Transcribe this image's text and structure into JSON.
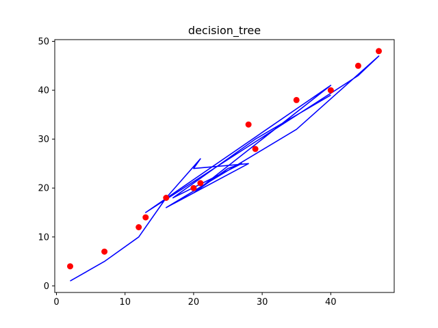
{
  "chart_data": {
    "type": "scatter",
    "title": "decision_tree",
    "xlabel": "",
    "ylabel": "",
    "xlim": [
      -0.25,
      49.25
    ],
    "ylim": [
      -1.35,
      50.35
    ],
    "xticks": [
      0,
      10,
      20,
      30,
      40
    ],
    "yticks": [
      0,
      10,
      20,
      30,
      40,
      50
    ],
    "grid": false,
    "legend": "none",
    "series": [
      {
        "type": "scatter",
        "color": "#ff0000",
        "points": [
          [
            2,
            4
          ],
          [
            7,
            7
          ],
          [
            12,
            12
          ],
          [
            13,
            14
          ],
          [
            16,
            18
          ],
          [
            20,
            20
          ],
          [
            21,
            21
          ],
          [
            28,
            33
          ],
          [
            29,
            28
          ],
          [
            35,
            38
          ],
          [
            40,
            40
          ],
          [
            44,
            45
          ],
          [
            47,
            48
          ]
        ]
      },
      {
        "type": "line",
        "color": "#0000ff",
        "points": [
          [
            2,
            1
          ],
          [
            7,
            5
          ],
          [
            12,
            10
          ],
          [
            16,
            18
          ],
          [
            21,
            26
          ],
          [
            20,
            24
          ],
          [
            28,
            25
          ],
          [
            16,
            16
          ],
          [
            35,
            32
          ],
          [
            47,
            47
          ],
          [
            44,
            43
          ],
          [
            13,
            15
          ],
          [
            40,
            41
          ],
          [
            20,
            19
          ],
          [
            25,
            24
          ],
          [
            27,
            25
          ],
          [
            17,
            18
          ],
          [
            29,
            30
          ],
          [
            40,
            39
          ]
        ]
      }
    ]
  }
}
